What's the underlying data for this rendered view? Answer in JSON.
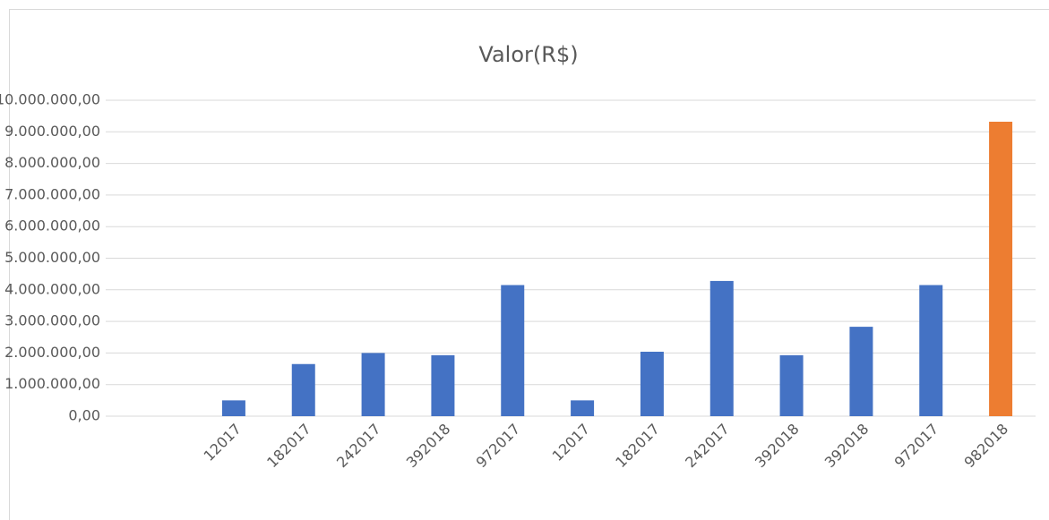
{
  "chart_data": {
    "type": "bar",
    "title": "Valor(R$)",
    "categories": [
      "12017",
      "182017",
      "242017",
      "392018",
      "972017",
      "12017",
      "182017",
      "242017",
      "392018",
      "392018",
      "972017",
      "982018"
    ],
    "values": [
      500000,
      1650000,
      2000000,
      1930000,
      4150000,
      500000,
      2040000,
      4280000,
      1930000,
      2830000,
      4150000,
      9320000
    ],
    "colors": [
      "#4472c4",
      "#4472c4",
      "#4472c4",
      "#4472c4",
      "#4472c4",
      "#4472c4",
      "#4472c4",
      "#4472c4",
      "#4472c4",
      "#4472c4",
      "#4472c4",
      "#ed7d31"
    ],
    "ylim": [
      0,
      10000000
    ],
    "yticks": [
      {
        "value": 0,
        "label": "0,00"
      },
      {
        "value": 1000000,
        "label": "1.000.000,00"
      },
      {
        "value": 2000000,
        "label": "2.000.000,00"
      },
      {
        "value": 3000000,
        "label": "3.000.000,00"
      },
      {
        "value": 4000000,
        "label": "4.000.000,00"
      },
      {
        "value": 5000000,
        "label": "5.000.000,00"
      },
      {
        "value": 6000000,
        "label": "6.000.000,00"
      },
      {
        "value": 7000000,
        "label": "7.000.000,00"
      },
      {
        "value": 8000000,
        "label": "8.000.000,00"
      },
      {
        "value": 9000000,
        "label": "9.000.000,00"
      },
      {
        "value": 10000000,
        "label": "10.000.000,00"
      }
    ],
    "grid": true
  }
}
